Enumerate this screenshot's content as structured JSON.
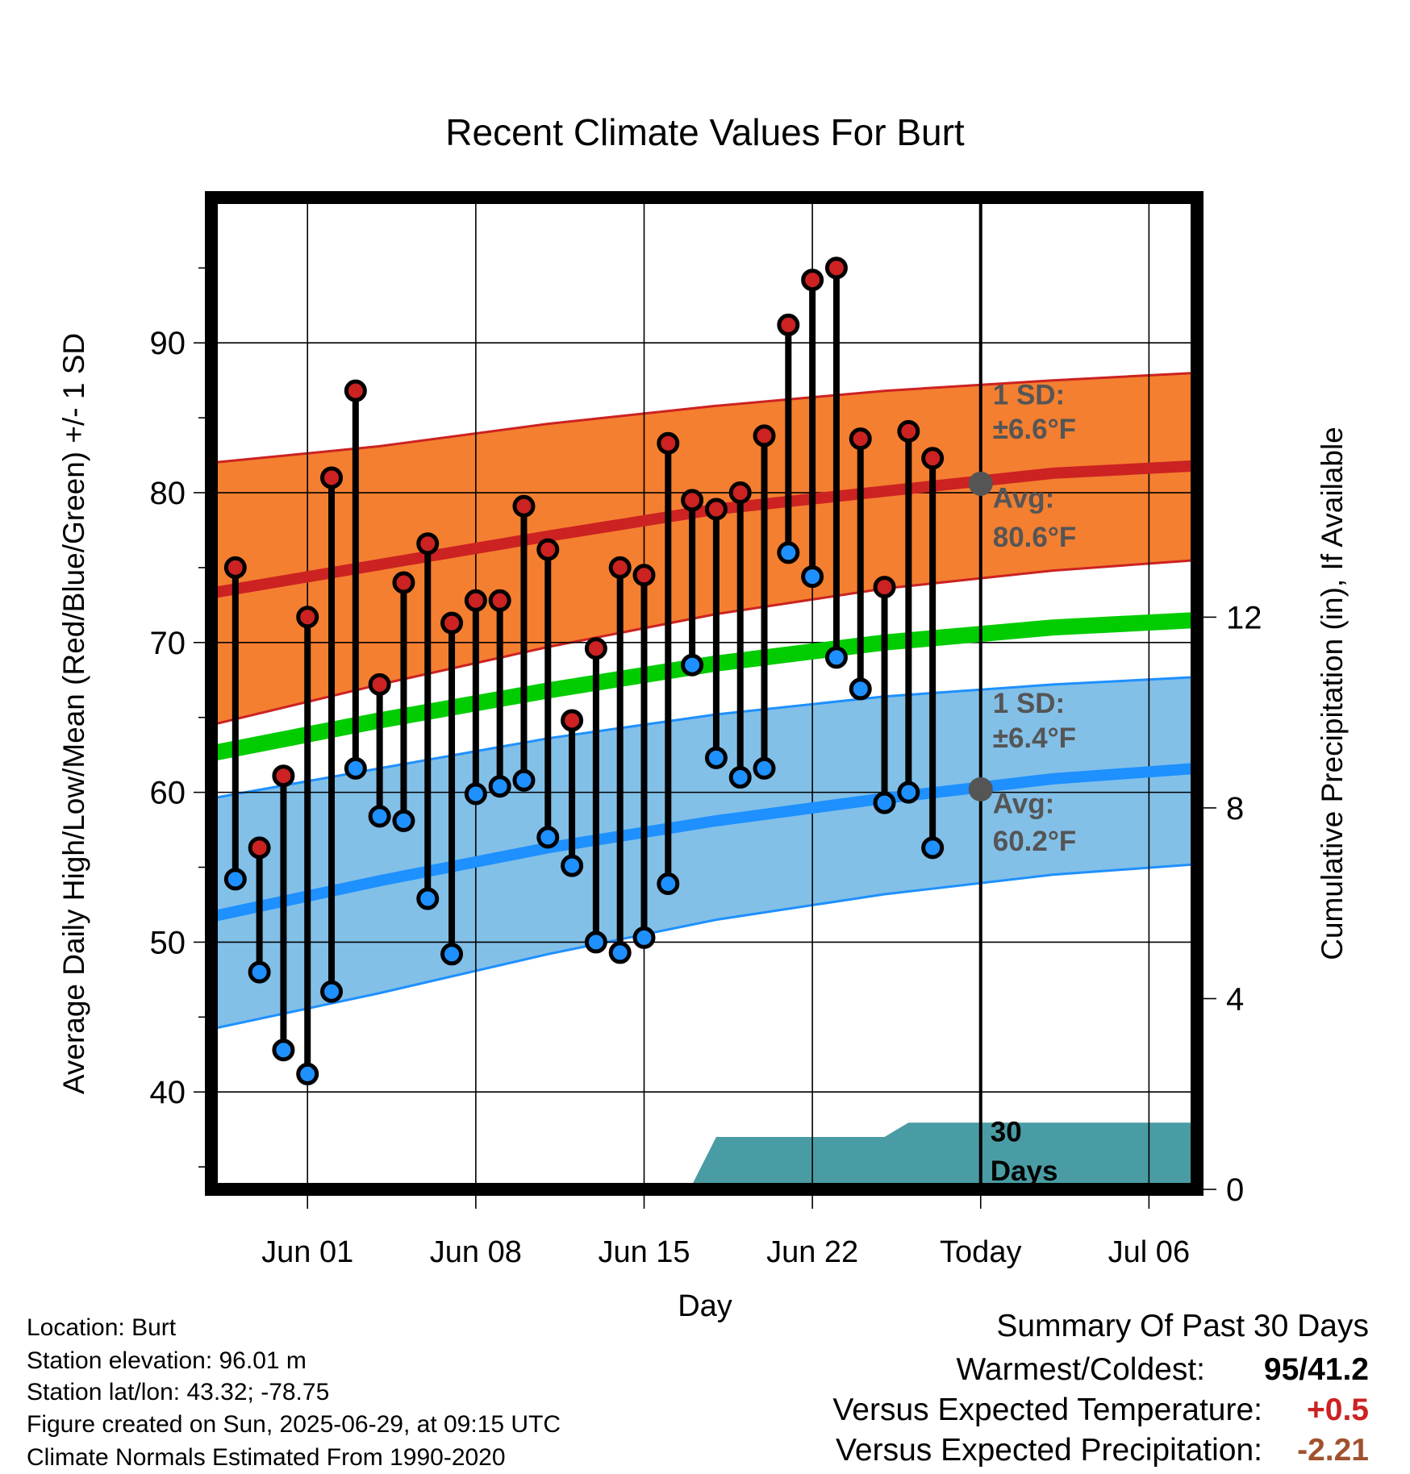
{
  "chart_data": {
    "type": "line",
    "title": "Recent Climate Values For Burt",
    "xlabel": "Day",
    "ylabel": "Average Daily High/Low/Mean (Red/Blue/Green) +/- 1 SD",
    "y2label": "Cumulative Precipitation (in), If Available",
    "x_range": [
      "2025-05-28",
      "2025-07-08"
    ],
    "ylim": [
      33.5,
      99.7
    ],
    "y2lim": [
      0,
      20.8
    ],
    "x_ticks": [
      {
        "date": "2025-06-01",
        "label": "Jun 01"
      },
      {
        "date": "2025-06-08",
        "label": "Jun 08"
      },
      {
        "date": "2025-06-15",
        "label": "Jun 15"
      },
      {
        "date": "2025-06-22",
        "label": "Jun 22"
      },
      {
        "date": "2025-06-29",
        "label": "Today"
      },
      {
        "date": "2025-07-06",
        "label": "Jul 06"
      }
    ],
    "y_ticks": [
      40,
      50,
      60,
      70,
      80,
      90
    ],
    "y2_ticks": [
      0,
      4,
      8,
      12
    ],
    "grid": true,
    "today": "2025-06-29",
    "today_label": [
      "30",
      "Days"
    ],
    "colors": {
      "high": "#cc2222",
      "low": "#1e90ff",
      "mean": "#00cc00",
      "high_band": "#f47f30",
      "low_band": "#82c0e8",
      "precip": "#4a9ca4",
      "annot": "#555555"
    },
    "normals": {
      "dates": [
        "2025-05-28",
        "2025-06-04",
        "2025-06-11",
        "2025-06-18",
        "2025-06-25",
        "2025-07-02",
        "2025-07-08"
      ],
      "high_mean": [
        73.3,
        75.2,
        77.1,
        78.9,
        80.1,
        81.3,
        81.8
      ],
      "high_upper": [
        82.0,
        83.1,
        84.6,
        85.8,
        86.8,
        87.5,
        88.0
      ],
      "high_lower": [
        64.5,
        67.2,
        69.7,
        71.9,
        73.6,
        74.8,
        75.5
      ],
      "mean": [
        62.6,
        64.8,
        66.8,
        68.6,
        70.0,
        71.0,
        71.5
      ],
      "low_mean": [
        51.7,
        54.1,
        56.3,
        58.1,
        59.6,
        60.9,
        61.6
      ],
      "low_upper": [
        59.6,
        61.6,
        63.6,
        65.2,
        66.4,
        67.2,
        67.7
      ],
      "low_lower": [
        44.2,
        46.6,
        49.2,
        51.5,
        53.2,
        54.5,
        55.2
      ]
    },
    "series": [
      {
        "name": "High",
        "dates": [
          "2025-05-29",
          "2025-05-30",
          "2025-05-31",
          "2025-06-01",
          "2025-06-02",
          "2025-06-03",
          "2025-06-04",
          "2025-06-05",
          "2025-06-06",
          "2025-06-07",
          "2025-06-08",
          "2025-06-09",
          "2025-06-10",
          "2025-06-11",
          "2025-06-12",
          "2025-06-13",
          "2025-06-14",
          "2025-06-15",
          "2025-06-16",
          "2025-06-17",
          "2025-06-18",
          "2025-06-19",
          "2025-06-20",
          "2025-06-21",
          "2025-06-22",
          "2025-06-23",
          "2025-06-24",
          "2025-06-25",
          "2025-06-26",
          "2025-06-27",
          "2025-06-28"
        ],
        "values": [
          75.0,
          56.3,
          61.1,
          71.7,
          81.0,
          86.8,
          67.2,
          74.0,
          76.6,
          71.3,
          72.8,
          72.8,
          79.1,
          76.2,
          64.8,
          69.6,
          75.0,
          74.5,
          83.3,
          79.5,
          78.9,
          80.0,
          83.8,
          91.2,
          94.2,
          95.0,
          83.6,
          73.7,
          84.1,
          82.3,
          null
        ]
      },
      {
        "name": "Low",
        "dates": [
          "2025-05-29",
          "2025-05-30",
          "2025-05-31",
          "2025-06-01",
          "2025-06-02",
          "2025-06-03",
          "2025-06-04",
          "2025-06-05",
          "2025-06-06",
          "2025-06-07",
          "2025-06-08",
          "2025-06-09",
          "2025-06-10",
          "2025-06-11",
          "2025-06-12",
          "2025-06-13",
          "2025-06-14",
          "2025-06-15",
          "2025-06-16",
          "2025-06-17",
          "2025-06-18",
          "2025-06-19",
          "2025-06-20",
          "2025-06-21",
          "2025-06-22",
          "2025-06-23",
          "2025-06-24",
          "2025-06-25",
          "2025-06-26",
          "2025-06-27",
          "2025-06-28"
        ],
        "values": [
          54.2,
          48.0,
          42.8,
          41.2,
          46.7,
          61.6,
          58.4,
          58.1,
          52.9,
          49.2,
          59.9,
          60.4,
          60.8,
          57.0,
          55.1,
          50.0,
          49.3,
          50.3,
          53.9,
          68.5,
          62.3,
          61.0,
          61.6,
          76.0,
          74.4,
          69.0,
          66.9,
          59.3,
          60.0,
          56.3,
          null
        ]
      }
    ],
    "precipitation": {
      "dates": [
        "2025-06-09",
        "2025-06-17",
        "2025-06-18",
        "2025-06-25",
        "2025-06-26",
        "2025-07-08"
      ],
      "values": [
        0.1,
        0.1,
        1.1,
        1.1,
        1.4,
        1.4
      ]
    },
    "annotations": {
      "high_sd": [
        "1 SD:",
        "±6.6°F"
      ],
      "high_avg": [
        "Avg:",
        "80.6°F"
      ],
      "high_avg_value": 80.6,
      "low_sd": [
        "1 SD:",
        "±6.4°F"
      ],
      "low_avg": [
        "Avg:",
        "60.2°F"
      ],
      "low_avg_value": 60.2
    }
  },
  "footer": {
    "location": "Location: Burt",
    "elevation": "Station elevation: 96.01 m",
    "latlon": "Station lat/lon: 43.32; -78.75",
    "created": "Figure created on Sun, 2025-06-29, at 09:15 UTC",
    "normals": "Climate Normals Estimated From 1990-2020"
  },
  "summary": {
    "heading": "Summary Of Past 30 Days",
    "warm_cold_label": "Warmest/Coldest:",
    "warm_cold_value": "95/41.2",
    "temp_label": "Versus Expected Temperature:",
    "temp_value": "+0.5",
    "temp_color": "#cc2222",
    "precip_label": "Versus Expected Precipitation:",
    "precip_value": "-2.21",
    "precip_color": "#a0522d"
  }
}
